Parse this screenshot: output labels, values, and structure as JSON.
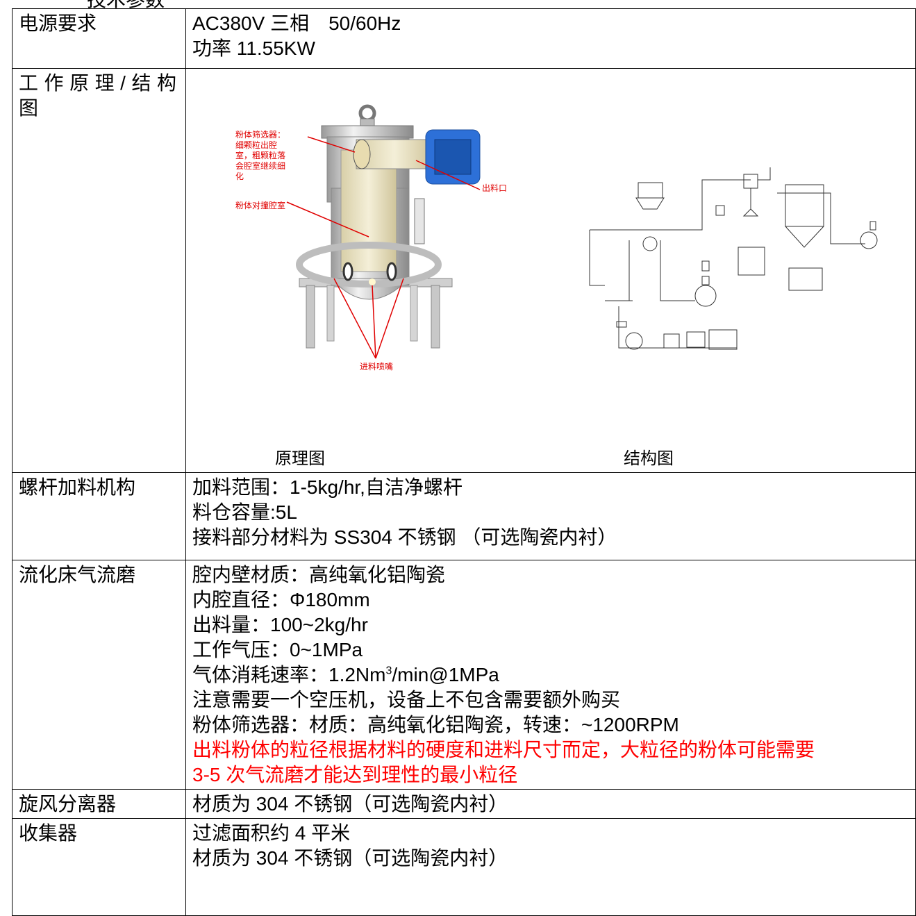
{
  "header": {
    "title": "技术参数"
  },
  "table": {
    "rows": [
      {
        "label": "电源要求",
        "lines": [
          "AC380V 三相　50/60Hz",
          "功率 11.55KW"
        ]
      },
      {
        "label": "工作原理/结构图",
        "figures": [
          {
            "caption": "原理图",
            "callouts": [
              "粉体筛选器：细颗粒出腔室，粗颗粒落会腔室继续细化",
              "粉体对撞腔室",
              "出料口",
              "进料喷嘴"
            ]
          },
          {
            "caption": "结构图"
          }
        ]
      },
      {
        "label": "螺杆加料机构",
        "lines": [
          "加料范围：1-5kg/hr,自洁净螺杆",
          "料仓容量:5L",
          "接料部分材料为 SS304 不锈钢 （可选陶瓷内衬）"
        ]
      },
      {
        "label": "流化床气流磨",
        "lines": [
          "腔内壁材质：高纯氧化铝陶瓷",
          "内腔直径：Φ180mm",
          "出料量：100~2kg/hr",
          "工作气压：0~1MPa",
          [
            "气体消耗速率：1.2Nm",
            "3",
            "/min@1MPa"
          ],
          "注意需要一个空压机，设备上不包含需要额外购买",
          "粉体筛选器：材质：高纯氧化铝陶瓷，转速：~1200RPM"
        ],
        "note": {
          "color": "#ff0000",
          "lines": [
            "出料粉体的粒径根据材料的硬度和进料尺寸而定，大粒径的粉体可能需要",
            "3-5 次气流磨才能达到理性的最小粒径"
          ]
        }
      },
      {
        "label": "旋风分离器",
        "lines": [
          "材质为 304 不锈钢（可选陶瓷内衬）"
        ]
      },
      {
        "label": "收集器",
        "lines": [
          "过滤面积约 4 平米",
          "材质为 304 不锈钢（可选陶瓷内衬）"
        ]
      }
    ]
  }
}
